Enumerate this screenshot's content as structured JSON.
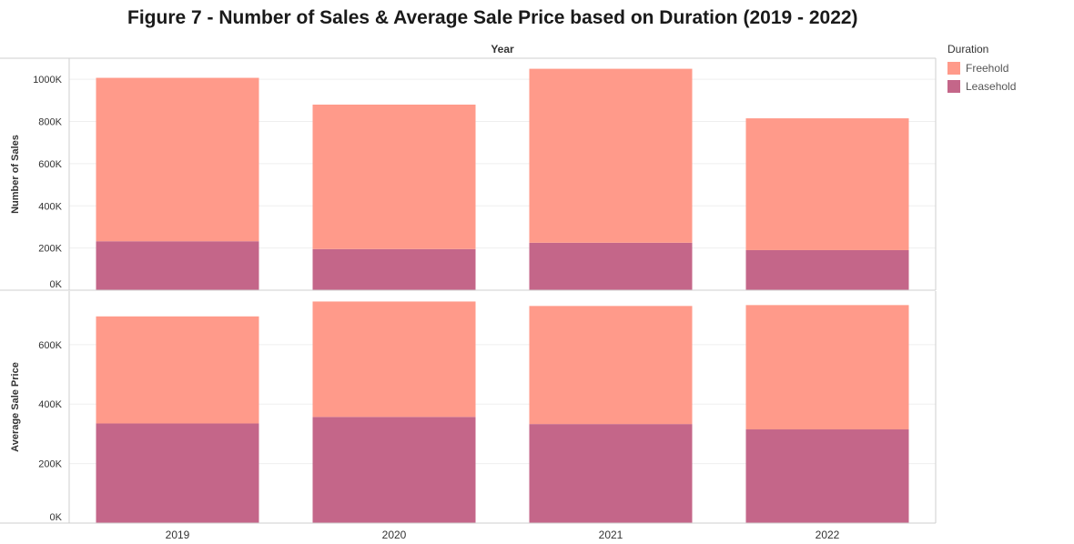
{
  "title": "Figure 7 - Number of Sales & Average Sale Price based on Duration (2019 - 2022)",
  "column_header": "Year",
  "legend": {
    "title": "Duration",
    "items": [
      {
        "label": "Freehold",
        "color": "#ff9a8a"
      },
      {
        "label": "Leasehold",
        "color": "#c46689"
      }
    ]
  },
  "chart_data": [
    {
      "type": "bar",
      "stacked": true,
      "ylabel": "Number of Sales",
      "categories": [
        "2019",
        "2020",
        "2021",
        "2022"
      ],
      "ylim": [
        0,
        1100000
      ],
      "ticks": [
        0,
        200000,
        400000,
        600000,
        800000,
        1000000
      ],
      "tick_labels": [
        "0K",
        "200K",
        "400K",
        "600K",
        "800K",
        "1000K"
      ],
      "series": [
        {
          "name": "Leasehold",
          "values": [
            232000,
            195000,
            225000,
            190000
          ]
        },
        {
          "name": "Freehold",
          "values": [
            775000,
            685000,
            825000,
            625000
          ]
        }
      ]
    },
    {
      "type": "bar",
      "stacked": true,
      "ylabel": "Average Sale Price",
      "categories": [
        "2019",
        "2020",
        "2021",
        "2022"
      ],
      "ylim": [
        0,
        780000
      ],
      "ticks": [
        0,
        200000,
        400000,
        600000
      ],
      "tick_labels": [
        "0K",
        "200K",
        "400K",
        "600K"
      ],
      "series": [
        {
          "name": "Leasehold",
          "values": [
            335000,
            357000,
            333000,
            315000
          ]
        },
        {
          "name": "Freehold",
          "values": [
            360000,
            388000,
            397000,
            418000
          ]
        }
      ]
    }
  ]
}
